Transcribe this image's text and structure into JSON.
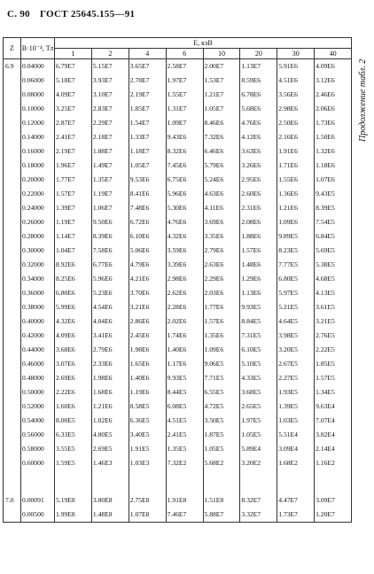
{
  "header": {
    "page": "С. 90",
    "standard": "ГОСТ 25645.155—91"
  },
  "caption": "Продолжение табл. 2",
  "table": {
    "col_z": "Z",
    "col_b": "B·10⁻⁴, Тл",
    "col_e": "E, кэВ",
    "energies": [
      "1",
      "2",
      "4",
      "6",
      "10",
      "20",
      "30",
      "40"
    ],
    "groups": [
      {
        "z": "6.9",
        "rows": [
          {
            "b": "0.04000",
            "values": [
              "6.79E7",
              "5.15E7",
              "3.65E7",
              "2.58E7",
              "2.00E7",
              "1.13E7",
              "5.91E6",
              "4.09E6"
            ]
          },
          {
            "b": "0.06000",
            "values": [
              "5.18E7",
              "3.93E7",
              "2.78E7",
              "1.97E7",
              "1.53E7",
              "8.59E6",
              "4.51E6",
              "3.12E6"
            ]
          },
          {
            "b": "0.08000",
            "values": [
              "4.09E7",
              "3.10E7",
              "2.19E7",
              "1.55E7",
              "1.21E7",
              "6.78E6",
              "3.56E6",
              "2.46E6"
            ]
          },
          {
            "b": "0.10000",
            "values": [
              "3.25E7",
              "2.83E7",
              "1.85E7",
              "1.31E7",
              "1.05E7",
              "5.68E6",
              "2.98E6",
              "2.06E6"
            ]
          },
          {
            "b": "0.12000",
            "values": [
              "2.87E7",
              "2.29E7",
              "1.54E7",
              "1.09E7",
              "8.46E6",
              "4.76E6",
              "2.50E6",
              "1.73E6"
            ]
          },
          {
            "b": "0.14000",
            "values": [
              "2.41E7",
              "2.18E7",
              "1.33E7",
              "9.43E6",
              "7.32E6",
              "4.12E6",
              "2.16E6",
              "1.50E6"
            ]
          },
          {
            "b": "0.16000",
            "values": [
              "2.19E7",
              "1.88E7",
              "1.18E7",
              "8.32E6",
              "6.46E6",
              "3.63E6",
              "1.91E6",
              "1.32E6"
            ]
          },
          {
            "b": "0.18000",
            "values": [
              "1.96E7",
              "1.49E7",
              "1.05E7",
              "7.45E6",
              "5.79E6",
              "3.26E6",
              "1.71E6",
              "1.18E6"
            ]
          },
          {
            "b": "0.20000",
            "values": [
              "1.77E7",
              "1.35E7",
              "9.53E6",
              "6.75E6",
              "5.24E6",
              "2.95E6",
              "1.55E6",
              "1.07E6"
            ]
          },
          {
            "b": "0.22000",
            "values": [
              "1.57E7",
              "1.19E7",
              "8.41E6",
              "5.96E6",
              "4.63E6",
              "2.60E6",
              "1.36E6",
              "9.43E5"
            ]
          },
          {
            "b": "0.24000",
            "values": [
              "1.39E7",
              "1.06E7",
              "7.48E6",
              "5.30E6",
              "4.11E6",
              "2.31E6",
              "1.21E6",
              "8.39E5"
            ]
          },
          {
            "b": "0.26000",
            "values": [
              "1.19E7",
              "9.50E6",
              "6.72E6",
              "4.76E6",
              "3.69E6",
              "2.08E6",
              "1.09E6",
              "7.54E5"
            ]
          },
          {
            "b": "0.28000",
            "values": [
              "1.14E7",
              "8.39E6",
              "6.10E6",
              "4.32E6",
              "3.35E6",
              "1.88E6",
              "9.89E5",
              "6.84E5"
            ]
          },
          {
            "b": "0.30000",
            "values": [
              "1.04E7",
              "7.58E6",
              "5.06E6",
              "3.59E6",
              "2.79E6",
              "1.57E6",
              "8.23E5",
              "5.69E5"
            ]
          },
          {
            "b": "0.32000",
            "values": [
              "8.92E6",
              "6.77E6",
              "4.79E6",
              "3.39E6",
              "2.63E6",
              "1.48E6",
              "7.77E5",
              "5.38E5"
            ]
          },
          {
            "b": "0.34000",
            "values": [
              "8.25E6",
              "5.96E6",
              "4.21E6",
              "2.98E6",
              "2.29E6",
              "1.29E6",
              "6.80E5",
              "4.68E5"
            ]
          },
          {
            "b": "0.36000",
            "values": [
              "6.80E6",
              "5.23E6",
              "3.70E6",
              "2.62E6",
              "2.03E6",
              "1.13E6",
              "5.97E5",
              "4.13E5"
            ]
          },
          {
            "b": "0.38000",
            "values": [
              "5.99E6",
              "4.54E6",
              "3.21E6",
              "2.28E6",
              "1.77E6",
              "9.93E5",
              "5.21E5",
              "3.61E5"
            ]
          },
          {
            "b": "0.40000",
            "values": [
              "4.32E6",
              "4.04E6",
              "2.86E6",
              "2.02E6",
              "1.57E6",
              "8.84E5",
              "4.64E5",
              "3.21E5"
            ]
          },
          {
            "b": "0.42000",
            "values": [
              "4.09E6",
              "3.41E6",
              "2.45E6",
              "1.74E6",
              "1.35E6",
              "7.31E5",
              "3.98E5",
              "2.76E5"
            ]
          },
          {
            "b": "0.44000",
            "values": [
              "3.68E6",
              "2.79E6",
              "1.98E6",
              "1.40E6",
              "1.09E6",
              "6.10E5",
              "3.20E5",
              "2.22E5"
            ]
          },
          {
            "b": "0.46000",
            "values": [
              "3.07E6",
              "2.33E6",
              "1.65E6",
              "1.17E6",
              "9.06E5",
              "5.10E5",
              "2.67E5",
              "1.85E5"
            ]
          },
          {
            "b": "0.48000",
            "values": [
              "2.69E6",
              "1.98E6",
              "1.40E6",
              "9.93E5",
              "7.71E5",
              "4.33E5",
              "2.27E5",
              "1.57E5"
            ]
          },
          {
            "b": "0.50000",
            "values": [
              "2.22E6",
              "1.68E6",
              "1.19E6",
              "8.44E5",
              "6.55E5",
              "3.68E5",
              "1.93E5",
              "1.34E5"
            ]
          },
          {
            "b": "0.52000",
            "values": [
              "1.60E6",
              "1.21E6",
              "8.58E5",
              "6.08E5",
              "4.72E5",
              "2.65E5",
              "1.39E5",
              "9.63E4"
            ]
          },
          {
            "b": "0.54000",
            "values": [
              "8.00E5",
              "1.02E6",
              "6.36E5",
              "4.51E5",
              "3.50E5",
              "1.97E5",
              "1.03E5",
              "7.07E4"
            ]
          },
          {
            "b": "0.56000",
            "values": [
              "6.33E5",
              "4.80E5",
              "3.40E5",
              "2.41E5",
              "1.87E5",
              "1.05E5",
              "5.51E4",
              "3.82E4"
            ]
          },
          {
            "b": "0.58000",
            "values": [
              "3.55E5",
              "2.69E5",
              "1.91E5",
              "1.35E5",
              "1.05E5",
              "5.89E4",
              "3.09E4",
              "2.14E4"
            ]
          },
          {
            "b": "0.60000",
            "values": [
              "1.59E5",
              "1.46E3",
              "1.03E3",
              "7.32E2",
              "5.68E2",
              "3.20E2",
              "1.68E2",
              "1.16E2"
            ]
          }
        ]
      },
      {
        "z": "7.0",
        "rows": [
          {
            "b": "0.00091",
            "values": [
              "5.19E8",
              "3.80E8",
              "2.75E8",
              "1.91E8",
              "1.51E8",
              "8.32E7",
              "4.47E7",
              "3.09E7"
            ]
          },
          {
            "b": "0.00500",
            "values": [
              "1.99E8",
              "1.48E8",
              "1.07E8",
              "7.46E7",
              "5.88E7",
              "3.32E7",
              "1.73E7",
              "1.20E7"
            ]
          }
        ]
      }
    ]
  }
}
